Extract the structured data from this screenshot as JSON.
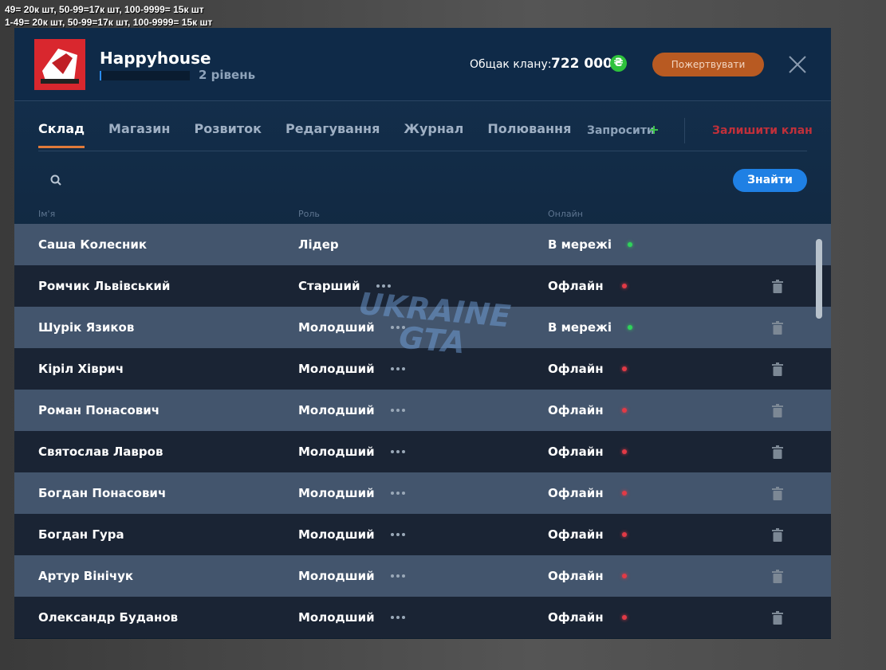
{
  "overlay_text": [
    "49= 20к шт, 50-99=17к шт, 100-9999= 15к шт",
    "1-49= 20к шт, 50-99=17к шт, 100-9999= 15к шт"
  ],
  "header": {
    "clan_name": "Happyhouse",
    "level": "2 рівень",
    "treasury_label": "Общак клану:",
    "treasury_value": "722 000",
    "currency_icon": "₴",
    "donate_button": "Пожертвувати"
  },
  "tabs": {
    "items": [
      "Склад",
      "Магазин",
      "Розвиток",
      "Редагування",
      "Журнал",
      "Полювання"
    ],
    "active": 0
  },
  "actions": {
    "invite": "Запросити",
    "leave": "Залишити клан"
  },
  "search": {
    "button": "Знайти"
  },
  "columns": [
    "Ім'я",
    "Роль",
    "Онлайн"
  ],
  "watermark": [
    "UKRAINE",
    "GTA"
  ],
  "members": [
    {
      "name": "Саша Колесник",
      "role": "Лідер",
      "status": "В мережі",
      "online": true,
      "manageable": false
    },
    {
      "name": "Ромчик Львівський",
      "role": "Старший",
      "status": "Офлайн",
      "online": false,
      "manageable": true
    },
    {
      "name": "Шурік Язиков",
      "role": "Молодший",
      "status": "В мережі",
      "online": true,
      "manageable": true
    },
    {
      "name": "Кіріл Хіврич",
      "role": "Молодший",
      "status": "Офлайн",
      "online": false,
      "manageable": true
    },
    {
      "name": "Роман Понасович",
      "role": "Молодший",
      "status": "Офлайн",
      "online": false,
      "manageable": true
    },
    {
      "name": "Святослав Лавров",
      "role": "Молодший",
      "status": "Офлайн",
      "online": false,
      "manageable": true
    },
    {
      "name": "Богдан Понасович",
      "role": "Молодший",
      "status": "Офлайн",
      "online": false,
      "manageable": true
    },
    {
      "name": "Богдан Гура",
      "role": "Молодший",
      "status": "Офлайн",
      "online": false,
      "manageable": true
    },
    {
      "name": "Артур Вінічук",
      "role": "Молодший",
      "status": "Офлайн",
      "online": false,
      "manageable": true
    },
    {
      "name": "Олександр Буданов",
      "role": "Молодший",
      "status": "Офлайн",
      "online": false,
      "manageable": true
    }
  ]
}
